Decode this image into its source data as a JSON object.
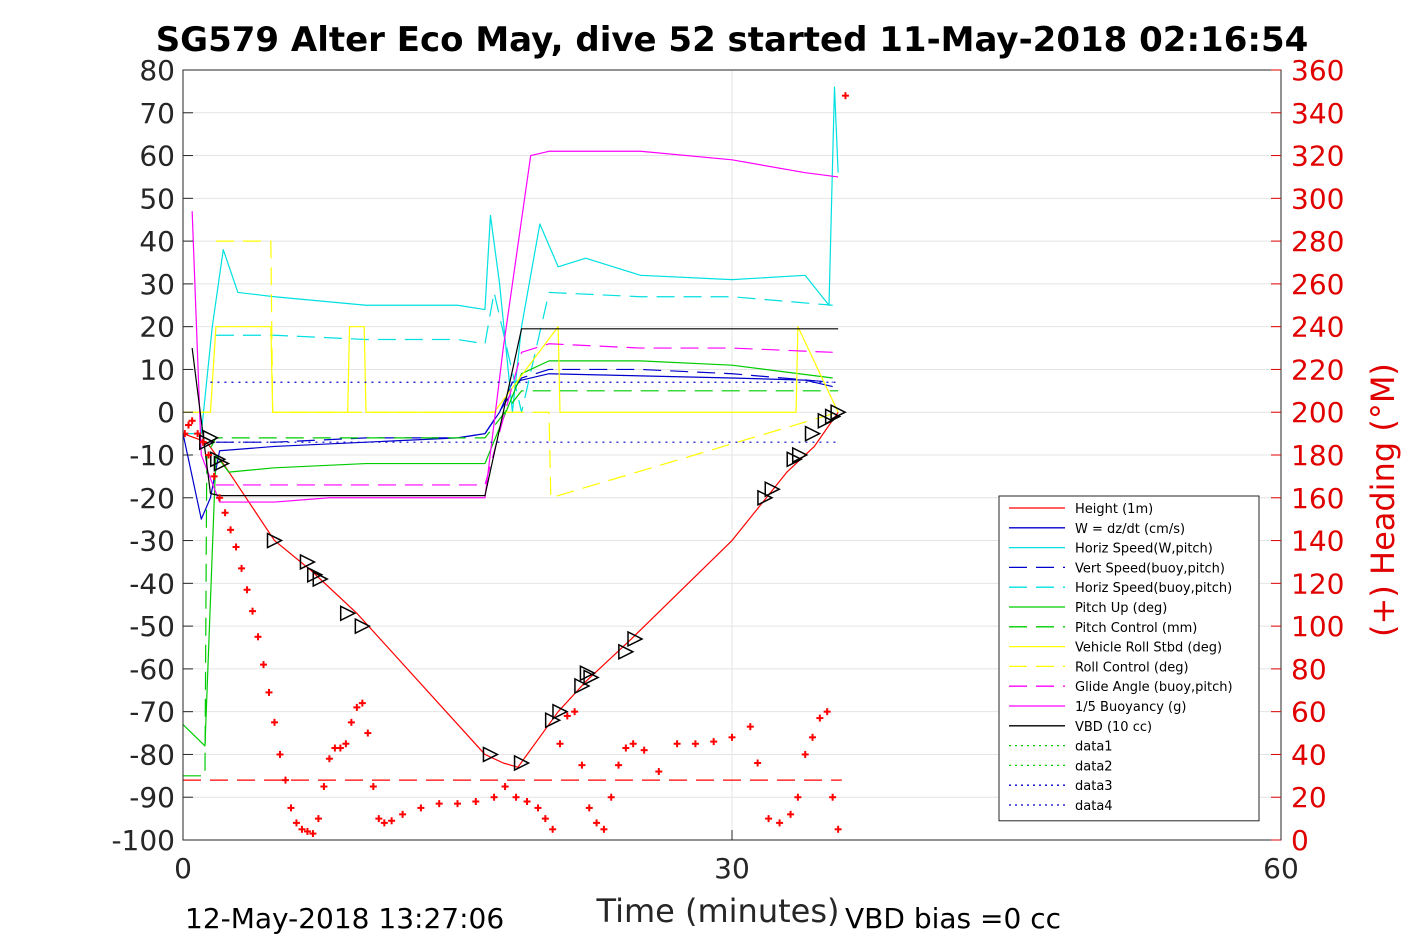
{
  "chart_data": {
    "type": "line",
    "title": "SG579 Alter Eco May, dive 52 started 11-May-2018 02:16:54",
    "xlabel": "Time (minutes)",
    "ylabel_left": "",
    "ylabel_right": "(+) Heading (°M)",
    "xlim": [
      0,
      60
    ],
    "ylim_left": [
      -100,
      80
    ],
    "ylim_right": [
      0,
      360
    ],
    "x_ticks": [
      "0",
      "30",
      "60"
    ],
    "y_ticks_left": [
      "80",
      "70",
      "60",
      "50",
      "40",
      "30",
      "20",
      "10",
      "0",
      "-10",
      "-20",
      "-30",
      "-40",
      "-50",
      "-60",
      "-70",
      "-80",
      "-90",
      "-100"
    ],
    "y_ticks_right": [
      "360",
      "340",
      "320",
      "300",
      "280",
      "260",
      "240",
      "220",
      "200",
      "180",
      "160",
      "140",
      "120",
      "100",
      "80",
      "60",
      "40",
      "20",
      "0"
    ],
    "grid": true,
    "legend_position": "lower-right",
    "footer_left": "12-May-2018 13:27:06",
    "footer_right": "VBD bias =0 cc",
    "series": [
      {
        "name": "Height (1m)",
        "color": "#ff0000",
        "style": "solid",
        "x": [
          0,
          1.3,
          1.8,
          2.2,
          5,
          7,
          9.5,
          16.5,
          17.5,
          18.3,
          20.5,
          22,
          24.5,
          30,
          33,
          34.5,
          35.8
        ],
        "y": [
          -5,
          -7,
          -10,
          -12,
          -30,
          -37,
          -47,
          -80,
          -82,
          -83,
          -70,
          -63,
          -53,
          -30,
          -14,
          -8,
          0
        ]
      },
      {
        "name": "W = dz/dt (cm/s)",
        "color": "#0000cc",
        "style": "solid",
        "x": [
          0,
          1,
          1.5,
          2,
          5,
          10,
          15,
          16.5,
          17.3,
          18,
          20,
          25,
          30,
          34,
          35.5
        ],
        "y": [
          -5,
          -25,
          -20,
          -9,
          -8,
          -7,
          -6,
          -5,
          0,
          7,
          9,
          8.5,
          8,
          7.5,
          6
        ]
      },
      {
        "name": "Horiz Speed(W,pitch)",
        "color": "#00e0e0",
        "style": "solid",
        "x": [
          0,
          1,
          1.6,
          2.2,
          3,
          5,
          10,
          15,
          16.5,
          16.8,
          17.3,
          18,
          18.5,
          19.5,
          20.5,
          22,
          25,
          30,
          34,
          35.3,
          35.6,
          35.8
        ],
        "y": [
          -5,
          -5,
          20,
          38,
          28,
          27,
          25,
          25,
          24,
          46,
          30,
          0,
          20,
          44,
          34,
          36,
          32,
          31,
          32,
          25,
          76,
          56
        ]
      },
      {
        "name": "Vert Speed(buoy,pitch)",
        "color": "#0000cc",
        "style": "dashed",
        "x": [
          1.8,
          5,
          10,
          15,
          16.5,
          18.5,
          20,
          25,
          30,
          35.5
        ],
        "y": [
          -7,
          -7,
          -6,
          -6,
          -5,
          8,
          10,
          10,
          9,
          7
        ]
      },
      {
        "name": "Horiz Speed(buoy,pitch)",
        "color": "#00e0e0",
        "style": "dashed",
        "x": [
          1.8,
          5,
          10,
          15,
          16.5,
          17,
          18.5,
          20,
          25,
          30,
          35.5
        ],
        "y": [
          18,
          18,
          17,
          17,
          16,
          28,
          0,
          28,
          27,
          27,
          25
        ]
      },
      {
        "name": "Pitch Up (deg)",
        "color": "#00cc00",
        "style": "solid",
        "x": [
          0,
          1.2,
          1.8,
          2.5,
          5,
          10,
          15,
          16.5,
          18.5,
          20,
          25,
          30,
          35.5
        ],
        "y": [
          -73,
          -78,
          -10,
          -14,
          -13,
          -12,
          -12,
          -12,
          9,
          12,
          12,
          11,
          8
        ]
      },
      {
        "name": "Pitch Control (mm)",
        "color": "#00cc00",
        "style": "dashed",
        "x": [
          0,
          1.2,
          1.3,
          1.8,
          5,
          16.5,
          18.5,
          35.8
        ],
        "y": [
          -85,
          -85,
          -10,
          -6,
          -6,
          -6,
          5,
          5
        ]
      },
      {
        "name": "Vehicle Roll Stbd (deg)",
        "color": "#ffff00",
        "style": "solid",
        "x": [
          0,
          1.5,
          1.8,
          4.8,
          4.9,
          6.8,
          9,
          9.1,
          9.9,
          10,
          16.5,
          17,
          20.5,
          20.6,
          24,
          30,
          33.5,
          33.6,
          35.8
        ],
        "y": [
          0,
          0,
          20,
          20,
          0,
          0,
          0,
          20,
          20,
          0,
          0,
          0,
          20,
          0,
          0,
          0,
          0,
          20,
          0
        ]
      },
      {
        "name": "Roll Control (deg)",
        "color": "#ffff00",
        "style": "dashed",
        "x": [
          1.8,
          4.8,
          4.9,
          16.5,
          20,
          20.1,
          35.8
        ],
        "y": [
          40,
          40,
          0,
          0,
          0,
          -20,
          0
        ]
      },
      {
        "name": "Glide Angle (buoy,pitch)",
        "color": "#ff00ff",
        "style": "dashed",
        "x": [
          1.8,
          5,
          10,
          15,
          16.5,
          18.5,
          20,
          25,
          30,
          35.5
        ],
        "y": [
          -17,
          -17,
          -17,
          -17,
          -17,
          14,
          16,
          15,
          15,
          14
        ]
      },
      {
        "name": "1/5 Buoyancy (g)",
        "color": "#ff00ff",
        "style": "solid",
        "x": [
          0.5,
          1,
          2,
          5,
          8,
          16.5,
          17.5,
          19,
          20,
          25,
          30,
          34,
          35.8
        ],
        "y": [
          47,
          -10,
          -21,
          -21,
          -20,
          -20,
          15,
          60,
          61,
          61,
          59,
          56,
          55
        ]
      },
      {
        "name": "VBD (10 cc)",
        "color": "#000000",
        "style": "solid",
        "x": [
          0.5,
          1.5,
          2,
          5,
          16.5,
          18.5,
          19,
          20,
          30,
          35.8
        ],
        "y": [
          15,
          -19,
          -19.5,
          -19.5,
          -19.5,
          19.5,
          19.5,
          19.5,
          19.5,
          19.5
        ]
      },
      {
        "name": "data1",
        "color": "#00cc00",
        "style": "dotted",
        "x": [],
        "y": []
      },
      {
        "name": "data2",
        "color": "#00cc00",
        "style": "dotted",
        "x": [],
        "y": []
      },
      {
        "name": "data3",
        "color": "#0000cc",
        "style": "dotted",
        "x": [
          1.5,
          35.8
        ],
        "y": [
          7,
          7
        ]
      },
      {
        "name": "data4",
        "color": "#0000cc",
        "style": "dotted",
        "x": [
          1.5,
          35.8
        ],
        "y": [
          -7,
          -7
        ]
      }
    ],
    "extra_lines": [
      {
        "color": "#ff0000",
        "style": "dashed",
        "axis": "left",
        "x": [
          0,
          36
        ],
        "y": [
          -86,
          -86
        ]
      }
    ],
    "heading": {
      "color": "#ff0000",
      "marker": "+",
      "axis": "right",
      "x": [
        0.1,
        0.3,
        0.5,
        0.8,
        1.1,
        1.4,
        1.7,
        2.0,
        2.3,
        2.6,
        2.9,
        3.2,
        3.5,
        3.8,
        4.1,
        4.4,
        4.7,
        5.0,
        5.3,
        5.6,
        5.9,
        6.2,
        6.5,
        6.8,
        7.1,
        7.4,
        7.7,
        8.0,
        8.3,
        8.6,
        8.9,
        9.2,
        9.5,
        9.8,
        10.1,
        10.4,
        10.7,
        11.0,
        11.4,
        12,
        13,
        14,
        15,
        16,
        17,
        17.6,
        18.2,
        18.8,
        19.4,
        19.8,
        20.2,
        20.6,
        21.0,
        21.4,
        21.8,
        22.2,
        22.6,
        23.0,
        23.4,
        23.8,
        24.2,
        24.6,
        25.2,
        26,
        27,
        28,
        29,
        30,
        31,
        31.4,
        32,
        32.6,
        33.2,
        33.6,
        34,
        34.4,
        34.8,
        35.2,
        35.5,
        35.8,
        36.2
      ],
      "y": [
        190,
        194,
        196,
        190,
        186,
        180,
        170,
        160,
        153,
        145,
        137,
        127,
        117,
        107,
        95,
        82,
        69,
        55,
        40,
        28,
        15,
        8,
        5,
        4,
        3,
        10,
        25,
        38,
        43,
        43,
        45,
        55,
        62,
        64,
        50,
        25,
        10,
        8,
        9,
        12,
        15,
        17,
        17,
        18,
        20,
        25,
        20,
        18,
        15,
        10,
        5,
        45,
        58,
        60,
        35,
        15,
        8,
        5,
        20,
        35,
        43,
        45,
        42,
        32,
        45,
        45,
        46,
        48,
        53,
        36,
        10,
        8,
        12,
        20,
        40,
        48,
        57,
        60,
        20,
        5,
        348
      ]
    },
    "turn_markers": {
      "color": "#000000",
      "marker": "triangle",
      "axis": "left",
      "x": [
        1.3,
        1.5,
        1.9,
        2.1,
        5,
        6.8,
        7.2,
        7.5,
        9,
        9.8,
        16.8,
        18.5,
        20.2,
        20.6,
        21.8,
        22.1,
        22.3,
        24.2,
        24.7,
        31.8,
        32.2,
        33.4,
        33.7,
        34.4,
        35.1,
        35.5,
        35.8
      ],
      "y": [
        -7,
        -6,
        -11,
        -12,
        -30,
        -35,
        -38,
        -39,
        -47,
        -50,
        -80,
        -82,
        -72,
        -70,
        -64,
        -61,
        -62,
        -56,
        -53,
        -20,
        -18,
        -11,
        -10,
        -5,
        -2,
        -1,
        0
      ]
    }
  }
}
